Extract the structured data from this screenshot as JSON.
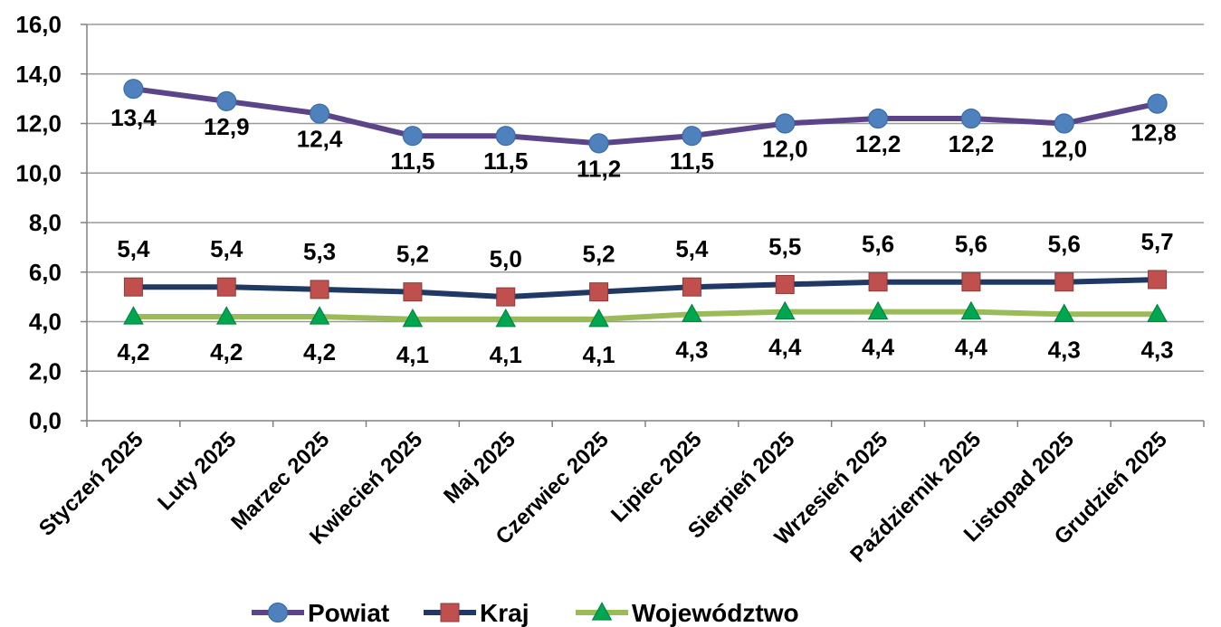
{
  "chart_data": {
    "type": "line",
    "categories": [
      "Styczeń 2025",
      "Luty 2025",
      "Marzec 2025",
      "Kwiecień 2025",
      "Maj 2025",
      "Czerwiec 2025",
      "Lipiec 2025",
      "Sierpień 2025",
      "Wrzesień 2025",
      "Październik 2025",
      "Listopad 2025",
      "Grudzień 2025"
    ],
    "series": [
      {
        "name": "Powiat",
        "values": [
          13.4,
          12.9,
          12.4,
          11.5,
          11.5,
          11.2,
          11.5,
          12.0,
          12.2,
          12.2,
          12.0,
          12.8
        ],
        "labels": [
          "13,4",
          "12,9",
          "12,4",
          "11,5",
          "11,5",
          "11,2",
          "11,5",
          "12,0",
          "12,2",
          "12,2",
          "12,0",
          "12,8"
        ],
        "line_color": "#5B4588",
        "marker": "circle",
        "marker_color": "#4F81BD"
      },
      {
        "name": "Kraj",
        "values": [
          5.4,
          5.4,
          5.3,
          5.2,
          5.0,
          5.2,
          5.4,
          5.5,
          5.6,
          5.6,
          5.6,
          5.7
        ],
        "labels": [
          "5,4",
          "5,4",
          "5,3",
          "5,2",
          "5,0",
          "5,2",
          "5,4",
          "5,5",
          "5,6",
          "5,6",
          "5,6",
          "5,7"
        ],
        "line_color": "#1F3864",
        "marker": "square",
        "marker_color": "#C0504D"
      },
      {
        "name": "Województwo",
        "values": [
          4.2,
          4.2,
          4.2,
          4.1,
          4.1,
          4.1,
          4.3,
          4.4,
          4.4,
          4.4,
          4.3,
          4.3
        ],
        "labels": [
          "4,2",
          "4,2",
          "4,2",
          "4,1",
          "4,1",
          "4,1",
          "4,3",
          "4,4",
          "4,4",
          "4,4",
          "4,3",
          "4,3"
        ],
        "line_color": "#9BBB59",
        "marker": "triangle",
        "marker_color": "#00A650"
      }
    ],
    "yticks": [
      "0,0",
      "2,0",
      "4,0",
      "6,0",
      "8,0",
      "10,0",
      "12,0",
      "14,0",
      "16,0"
    ],
    "ylim": [
      0,
      16
    ],
    "grid": true,
    "legend": "bottom",
    "title": "",
    "xlabel": "",
    "ylabel": ""
  }
}
